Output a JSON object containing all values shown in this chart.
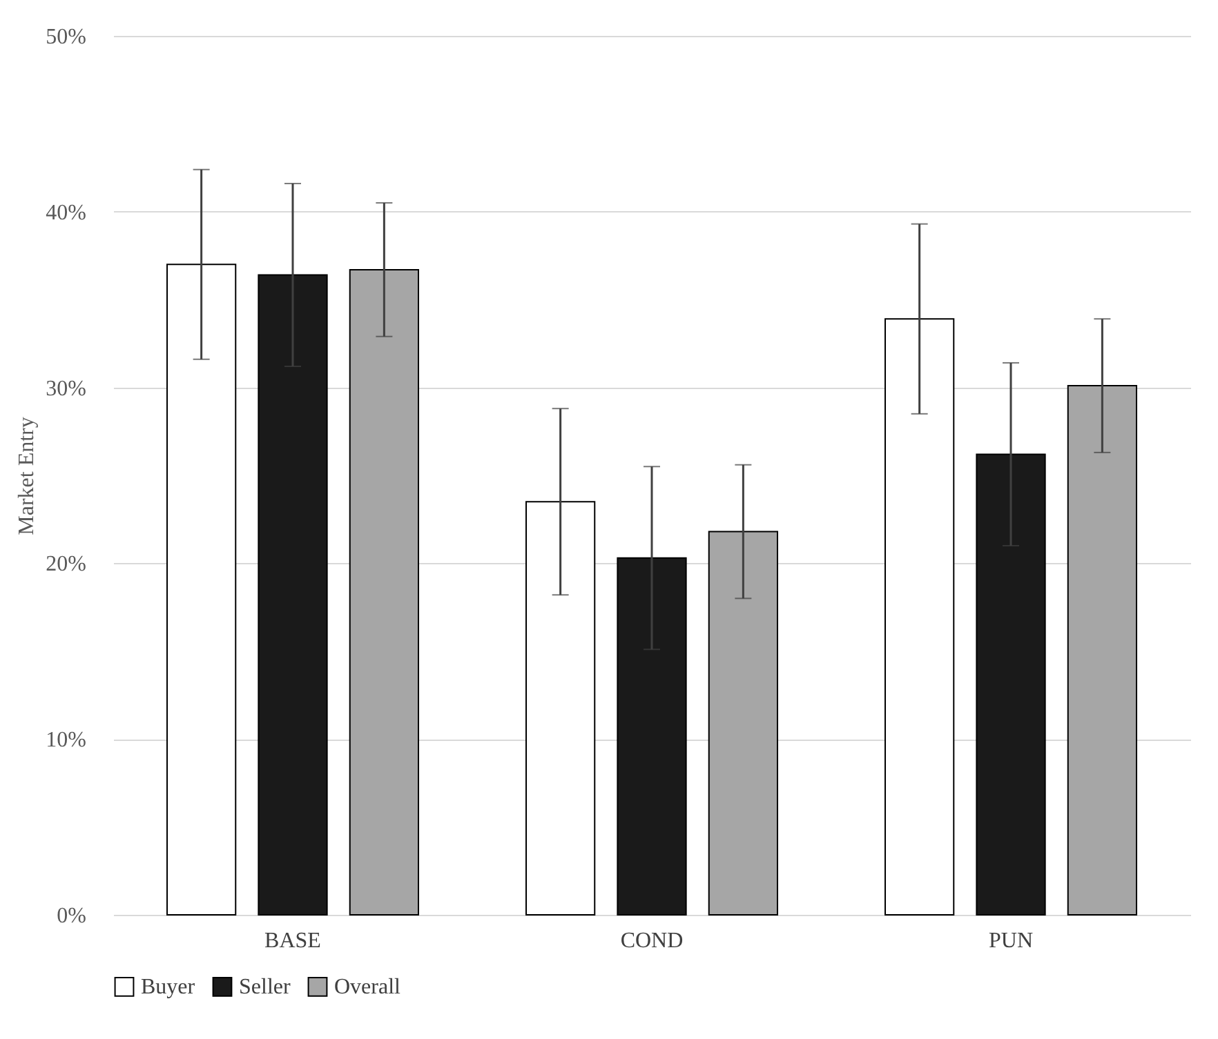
{
  "chart_data": {
    "type": "bar",
    "ylabel": "Market Entry",
    "categories": [
      "BASE",
      "COND",
      "PUN"
    ],
    "series": [
      {
        "name": "Buyer",
        "color": "#ffffff",
        "values": [
          37.0,
          23.5,
          33.9
        ],
        "errors": [
          5.4,
          5.3,
          5.4
        ]
      },
      {
        "name": "Seller",
        "color": "#1a1a1a",
        "values": [
          36.4,
          20.3,
          26.2
        ],
        "errors": [
          5.2,
          5.2,
          5.2
        ]
      },
      {
        "name": "Overall",
        "color": "#a6a6a6",
        "values": [
          36.7,
          21.8,
          30.1
        ],
        "errors": [
          3.8,
          3.8,
          3.8
        ]
      }
    ],
    "ylim": [
      0,
      50
    ],
    "yticks": [
      {
        "value": 0,
        "label": "0%"
      },
      {
        "value": 10,
        "label": "10%"
      },
      {
        "value": 20,
        "label": "20%"
      },
      {
        "value": 30,
        "label": "30%"
      },
      {
        "value": 40,
        "label": "40%"
      },
      {
        "value": 50,
        "label": "50%"
      }
    ],
    "grid": "y",
    "legend": "bottom"
  }
}
